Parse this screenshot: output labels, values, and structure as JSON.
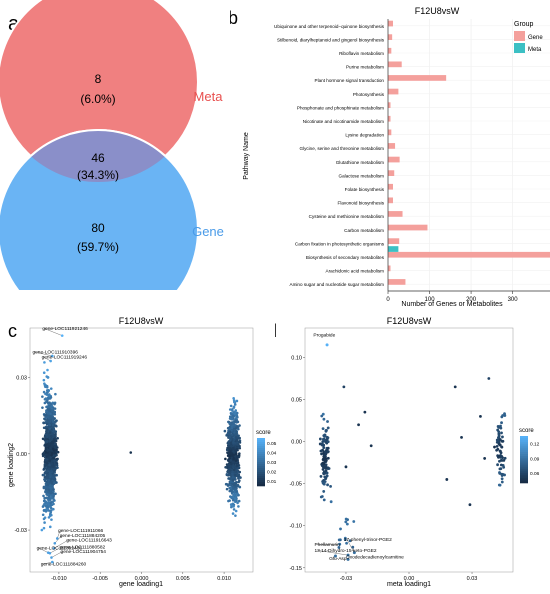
{
  "panel_labels": [
    "a",
    "b",
    "c",
    "d"
  ],
  "colors": {
    "meta": "#f08080",
    "gene": "#6ab4f4",
    "overlap": "#8a8fc9",
    "bar_gene": "#f4a09c",
    "bar_meta": "#3cc0c4",
    "score_low": "#13253d",
    "score_high": "#56b1f7"
  },
  "chart_data": [
    {
      "type": "venn",
      "sets": [
        {
          "name": "Meta",
          "only": "8",
          "only_pct": "(6.0%)"
        },
        {
          "name": "Gene",
          "only": "80",
          "only_pct": "(59.7%)"
        }
      ],
      "intersection": "46",
      "intersection_pct": "(34.3%)"
    },
    {
      "type": "bar",
      "orientation": "horizontal",
      "title": "F12U8vsW",
      "xlabel": "Number of Genes or Metabolites",
      "ylabel": "Pathway Name",
      "xticks": [
        0,
        100,
        200,
        300
      ],
      "xlim": [
        0,
        390
      ],
      "legend": {
        "title": "Group",
        "position": "right",
        "entries": [
          "Gene",
          "Meta"
        ]
      },
      "categories": [
        "Ubiquinone and other terpenoid−quinone biosynthesis",
        "Stilbenoid, diarylheptanoid and gingerol biosynthesis",
        "Riboflavin metabolism",
        "Purine metabolism",
        "Plant hormone signal transduction",
        "Photosynthesis",
        "Phosphonate and phosphinate metabolism",
        "Nicotinate and nicotinamide metabolism",
        "Lysine degradation",
        "Glycine, serine and threonine metabolism",
        "Glutathione metabolism",
        "Galactose metabolism",
        "Folate biosynthesis",
        "Flavonoid biosynthesis",
        "Cysteine and methionine metabolism",
        "Carbon metabolism",
        "Carbon fixation in photosynthetic organisms",
        "Biosynthesis of secondary metabolites",
        "Arachidonic acid metabolism",
        "Amino sugar and nucleotide sugar metabolism"
      ],
      "series": [
        {
          "name": "Gene",
          "values": [
            12,
            10,
            8,
            33,
            140,
            25,
            6,
            6,
            8,
            17,
            28,
            15,
            12,
            12,
            35,
            95,
            27,
            390,
            6,
            42
          ]
        },
        {
          "name": "Meta",
          "values": [
            0,
            0,
            0,
            0,
            0,
            0,
            0,
            0,
            0,
            0,
            0,
            0,
            0,
            0,
            0,
            0,
            0,
            25,
            0,
            0
          ]
        }
      ]
    },
    {
      "type": "scatter",
      "title": "F12U8vsW",
      "xlabel": "gene loading1",
      "ylabel": "gene loading2",
      "xticks": [
        "-0.010",
        "-0.005",
        "0.000",
        "0.005",
        "0.010"
      ],
      "yticks": [
        "-0.03",
        "0.00",
        "0.03"
      ],
      "xlim": [
        -0.0135,
        0.0135
      ],
      "ylim": [
        -0.0465,
        0.0495
      ],
      "legend": {
        "title": "score",
        "ticks": [
          "0.05",
          "0.04",
          "0.03",
          "0.02",
          "0.01"
        ],
        "range": [
          0.005,
          0.055
        ]
      },
      "clusters": [
        {
          "x_min": -0.0122,
          "x_max": -0.0098,
          "y_min": -0.035,
          "y_max": 0.037,
          "count": 1400
        },
        {
          "x_min": 0.0098,
          "x_max": 0.0123,
          "y_min": -0.03,
          "y_max": 0.028,
          "count": 800
        }
      ],
      "labeled_points": [
        {
          "label": "gene-LOC111921246",
          "x": -0.0096,
          "y": 0.0465,
          "score": 0.055
        },
        {
          "label": "gene-LOC111910396",
          "x": -0.0108,
          "y": 0.0385,
          "score": 0.05
        },
        {
          "label": "gene-LOC111919246",
          "x": -0.011,
          "y": 0.0365,
          "score": 0.05
        },
        {
          "label": "gene-LOC111911066",
          "x": -0.0102,
          "y": -0.0333,
          "score": 0.048
        },
        {
          "label": "gene-LOC111884205",
          "x": -0.0105,
          "y": -0.0352,
          "score": 0.048
        },
        {
          "label": "gene-LOC111916643",
          "x": -0.0106,
          "y": -0.0372,
          "score": 0.048
        },
        {
          "label": "gene-LOC111892436",
          "x": -0.0113,
          "y": -0.0389,
          "score": 0.049
        },
        {
          "label": "gene-LOC111880582",
          "x": -0.0111,
          "y": -0.0391,
          "score": 0.049
        },
        {
          "label": "gene-LOC111904754",
          "x": -0.0109,
          "y": -0.0408,
          "score": 0.049
        },
        {
          "label": "gene-LOC111884260",
          "x": -0.0108,
          "y": -0.0426,
          "score": 0.05
        }
      ]
    },
    {
      "type": "scatter",
      "title": "F12U8vsW",
      "xlabel": "meta loading1",
      "ylabel": "",
      "xticks": [
        "-0.03",
        "0.00",
        "0.03"
      ],
      "yticks": [
        "0.10",
        "0.05",
        "0.00",
        "-0.05",
        "-0.10",
        "-0.15"
      ],
      "xlim": [
        -0.0495,
        0.0495
      ],
      "ylim": [
        -0.155,
        0.135
      ],
      "legend": {
        "title": "score",
        "ticks": [
          "0.12",
          "0.09",
          "0.06"
        ],
        "range": [
          0.04,
          0.135
        ]
      },
      "clusters": [
        {
          "x_min": -0.0435,
          "x_max": -0.0365,
          "y_min": -0.09,
          "y_max": 0.05,
          "count": 110
        },
        {
          "x_min": 0.04,
          "x_max": 0.046,
          "y_min": -0.07,
          "y_max": 0.05,
          "count": 70
        }
      ],
      "scattered_points": [
        {
          "x": -0.024,
          "y": 0.02,
          "score": 0.05
        },
        {
          "x": -0.021,
          "y": 0.035,
          "score": 0.05
        },
        {
          "x": -0.018,
          "y": -0.005,
          "score": 0.05
        },
        {
          "x": 0.018,
          "y": -0.045,
          "score": 0.05
        },
        {
          "x": 0.022,
          "y": 0.065,
          "score": 0.05
        },
        {
          "x": 0.025,
          "y": 0.005,
          "score": 0.05
        },
        {
          "x": 0.029,
          "y": -0.075,
          "score": 0.05
        },
        {
          "x": 0.034,
          "y": 0.03,
          "score": 0.05
        },
        {
          "x": 0.036,
          "y": -0.02,
          "score": 0.05
        },
        {
          "x": 0.038,
          "y": 0.075,
          "score": 0.06
        },
        {
          "x": -0.031,
          "y": 0.065,
          "score": 0.06
        },
        {
          "x": -0.03,
          "y": -0.03,
          "score": 0.05
        }
      ],
      "labeled_points": [
        {
          "label": "Progabide",
          "x": -0.039,
          "y": 0.115,
          "score": 0.135
        },
        {
          "label": "17-phenyl-trinor-PGE2",
          "x": -0.026,
          "y": -0.132,
          "score": 0.09
        },
        {
          "label": "Phellamurin",
          "x": -0.033,
          "y": -0.122,
          "score": 0.09
        },
        {
          "label": "13,14-Dihydro-15-keto-PGE2",
          "x": -0.029,
          "y": -0.135,
          "score": 0.09
        },
        {
          "label": "Glu-Asp",
          "x": -0.035,
          "y": -0.136,
          "score": 0.09
        },
        {
          "label": "Oxodedecadienoylcarnitine",
          "x": -0.029,
          "y": -0.14,
          "score": 0.09
        }
      ]
    }
  ]
}
